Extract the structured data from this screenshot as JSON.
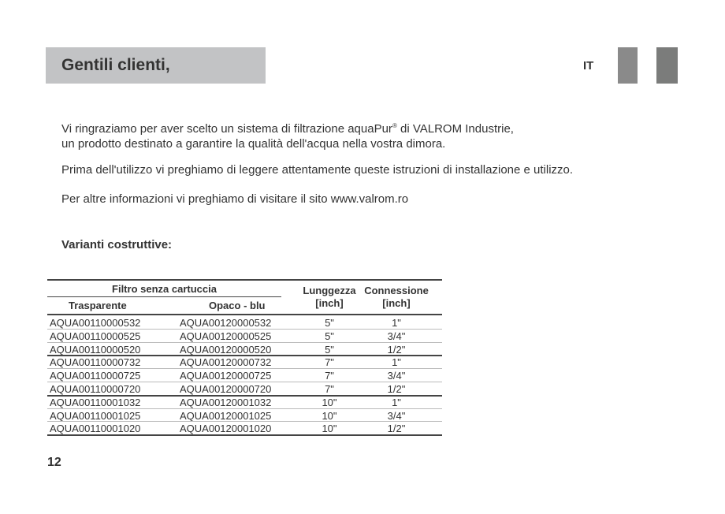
{
  "header": {
    "title": "Gentili clienti,",
    "language": "IT"
  },
  "intro": {
    "line1_a": "Vi ringraziamo per aver scelto un sistema di filtrazione aquaPur",
    "line1_sup": "®",
    "line1_b": " di VALROM Industrie,",
    "line2": "un prodotto destinato a garantire la qualità dell'acqua nella vostra dimora.",
    "para2": "Prima dell'utilizzo vi preghiamo di leggere attentamente queste istruzioni di installazione e utilizzo.",
    "para3": "Per altre informazioni vi preghiamo di visitare il sito www.valrom.ro"
  },
  "section_title": "Varianti costruttive:",
  "table": {
    "group_header": "Filtro senza cartuccia",
    "headers": [
      "Trasparente",
      "Opaco - blu",
      "Lunggezza [inch]",
      "Connessione [inch]"
    ],
    "rows": [
      [
        "AQUA00110000532",
        "AQUA00120000532",
        "5\"",
        "1\""
      ],
      [
        "AQUA00110000525",
        "AQUA00120000525",
        "5\"",
        "3/4\""
      ],
      [
        "AQUA00110000520",
        "AQUA00120000520",
        "5\"",
        "1/2\""
      ],
      [
        "AQUA00110000732",
        "AQUA00120000732",
        "7\"",
        "1\""
      ],
      [
        "AQUA00110000725",
        "AQUA00120000725",
        "7\"",
        "3/4\""
      ],
      [
        "AQUA00110000720",
        "AQUA00120000720",
        "7\"",
        "1/2\""
      ],
      [
        "AQUA00110001032",
        "AQUA00120001032",
        "10\"",
        "1\""
      ],
      [
        "AQUA00110001025",
        "AQUA00120001025",
        "10\"",
        "3/4\""
      ],
      [
        "AQUA00110001020",
        "AQUA00120001020",
        "10\"",
        "1/2\""
      ]
    ]
  },
  "page_number": "12"
}
